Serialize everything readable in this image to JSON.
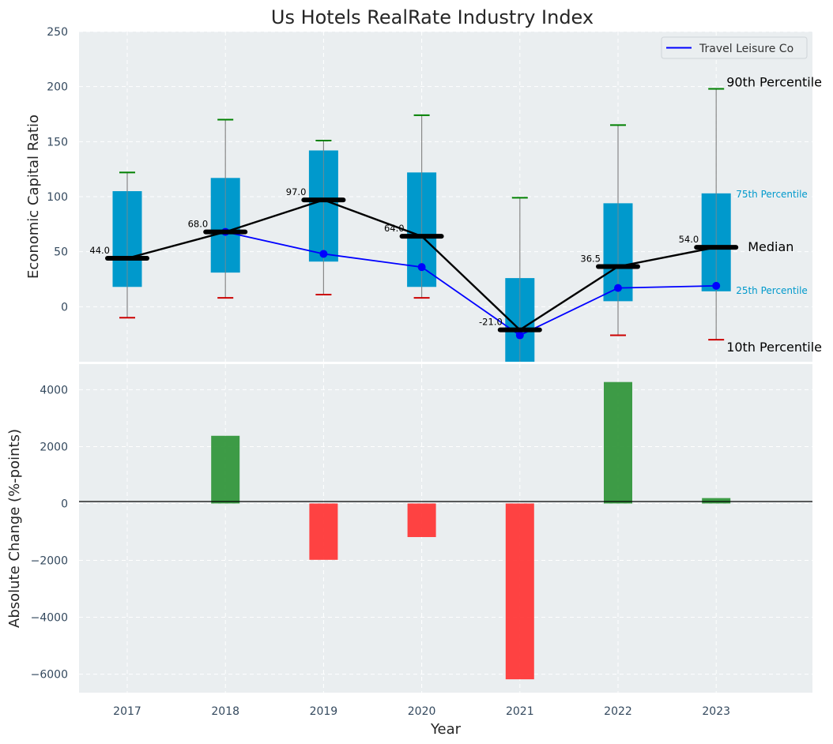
{
  "chart_data": [
    {
      "type": "box",
      "title": "Us Hotels RealRate Industry Index",
      "ylabel": "Economic Capital Ratio",
      "ylim": [
        -50,
        250
      ],
      "yticks": [
        0,
        50,
        100,
        150,
        200,
        250
      ],
      "categories": [
        "2017",
        "2018",
        "2019",
        "2020",
        "2021",
        "2022",
        "2023"
      ],
      "percentiles": {
        "p10": [
          -10,
          8,
          11,
          8,
          -50,
          -26,
          -30
        ],
        "p25": [
          18,
          31,
          41,
          18,
          -50,
          5,
          14
        ],
        "median": [
          44.0,
          68.0,
          97.0,
          64.0,
          -21.0,
          36.5,
          54.0
        ],
        "p75": [
          105,
          117,
          142,
          122,
          26,
          94,
          103
        ],
        "p90": [
          122,
          170,
          151,
          174,
          99,
          165,
          198
        ]
      },
      "median_labels": [
        "44.0",
        "68.0",
        "97.0",
        "64.0",
        "-21.0",
        "36.5",
        "54.0"
      ],
      "series": [
        {
          "name": "Travel Leisure Co",
          "values": [
            null,
            68,
            48,
            36,
            -26,
            17,
            19
          ]
        }
      ],
      "annotations": {
        "p90": "90th Percentile",
        "p75": "75th Percentile",
        "median": "Median",
        "p25": "25th Percentile",
        "p10": "10th Percentile"
      },
      "legend_position": "top-right",
      "grid": true,
      "colors": {
        "box": "#0099cc",
        "median": "#000000",
        "company_line": "#0000ff",
        "upper_whisker_cap": "#008000",
        "lower_whisker_cap": "#cc0000",
        "whisker": "#888888",
        "annotation_small": "#0099cc",
        "panel_bg": "#eaeef0"
      }
    },
    {
      "type": "bar",
      "xlabel": "Year",
      "ylabel": "Absolute Change (%-points)",
      "categories": [
        "2017",
        "2018",
        "2019",
        "2020",
        "2021",
        "2022",
        "2023"
      ],
      "values": [
        null,
        2380,
        -1980,
        -1180,
        -6180,
        4270,
        190
      ],
      "ylim": [
        -6650,
        4900
      ],
      "yticks": [
        -6000,
        -4000,
        -2000,
        0,
        2000,
        4000
      ],
      "ytick_labels": [
        "−6000",
        "−4000",
        "−2000",
        "0",
        "2000",
        "4000"
      ],
      "grid": true,
      "colors": {
        "positive": "#2e9437",
        "negative": "#ff3333"
      }
    }
  ]
}
